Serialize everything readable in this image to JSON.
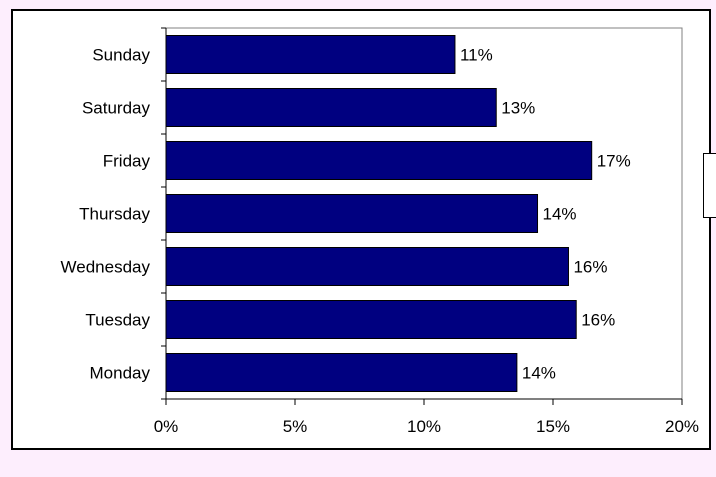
{
  "chart_data": {
    "type": "bar",
    "orientation": "horizontal",
    "title": "",
    "xlabel": "",
    "ylabel": "",
    "categories": [
      "Monday",
      "Tuesday",
      "Wednesday",
      "Thursday",
      "Friday",
      "Saturday",
      "Sunday"
    ],
    "values": [
      13.6,
      15.9,
      15.6,
      14.4,
      16.5,
      12.8,
      11.2
    ],
    "data_labels": [
      "14%",
      "16%",
      "16%",
      "14%",
      "17%",
      "13%",
      "11%"
    ],
    "xlim": [
      0,
      20
    ],
    "x_ticks": [
      0,
      5,
      10,
      15,
      20
    ],
    "x_tick_labels": [
      "0%",
      "5%",
      "10%",
      "15%",
      "20%"
    ],
    "grid": false,
    "bar_color": "#000080",
    "frame_background": "#fdeefd"
  }
}
